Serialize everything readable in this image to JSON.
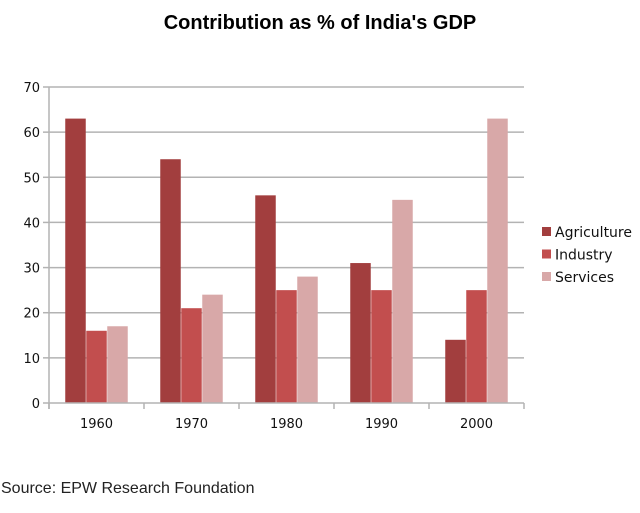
{
  "chart_data": {
    "type": "bar",
    "title": "Contribution as % of India's GDP",
    "xlabel": "",
    "ylabel": "",
    "categories": [
      "1960",
      "1970",
      "1980",
      "1990",
      "2000"
    ],
    "series": [
      {
        "name": "Agriculture",
        "color": "#a23e3e",
        "values": [
          63,
          54,
          46,
          31,
          14
        ]
      },
      {
        "name": "Industry",
        "color": "#c24e4e",
        "values": [
          16,
          21,
          25,
          25,
          25
        ]
      },
      {
        "name": "Services",
        "color": "#d8a8a8",
        "values": [
          17,
          24,
          28,
          45,
          63
        ]
      }
    ],
    "ylim": [
      0,
      70
    ],
    "yticks": [
      0,
      10,
      20,
      30,
      40,
      50,
      60,
      70
    ],
    "grid": true,
    "legend": "right",
    "source": "Source: EPW Research Foundation"
  }
}
